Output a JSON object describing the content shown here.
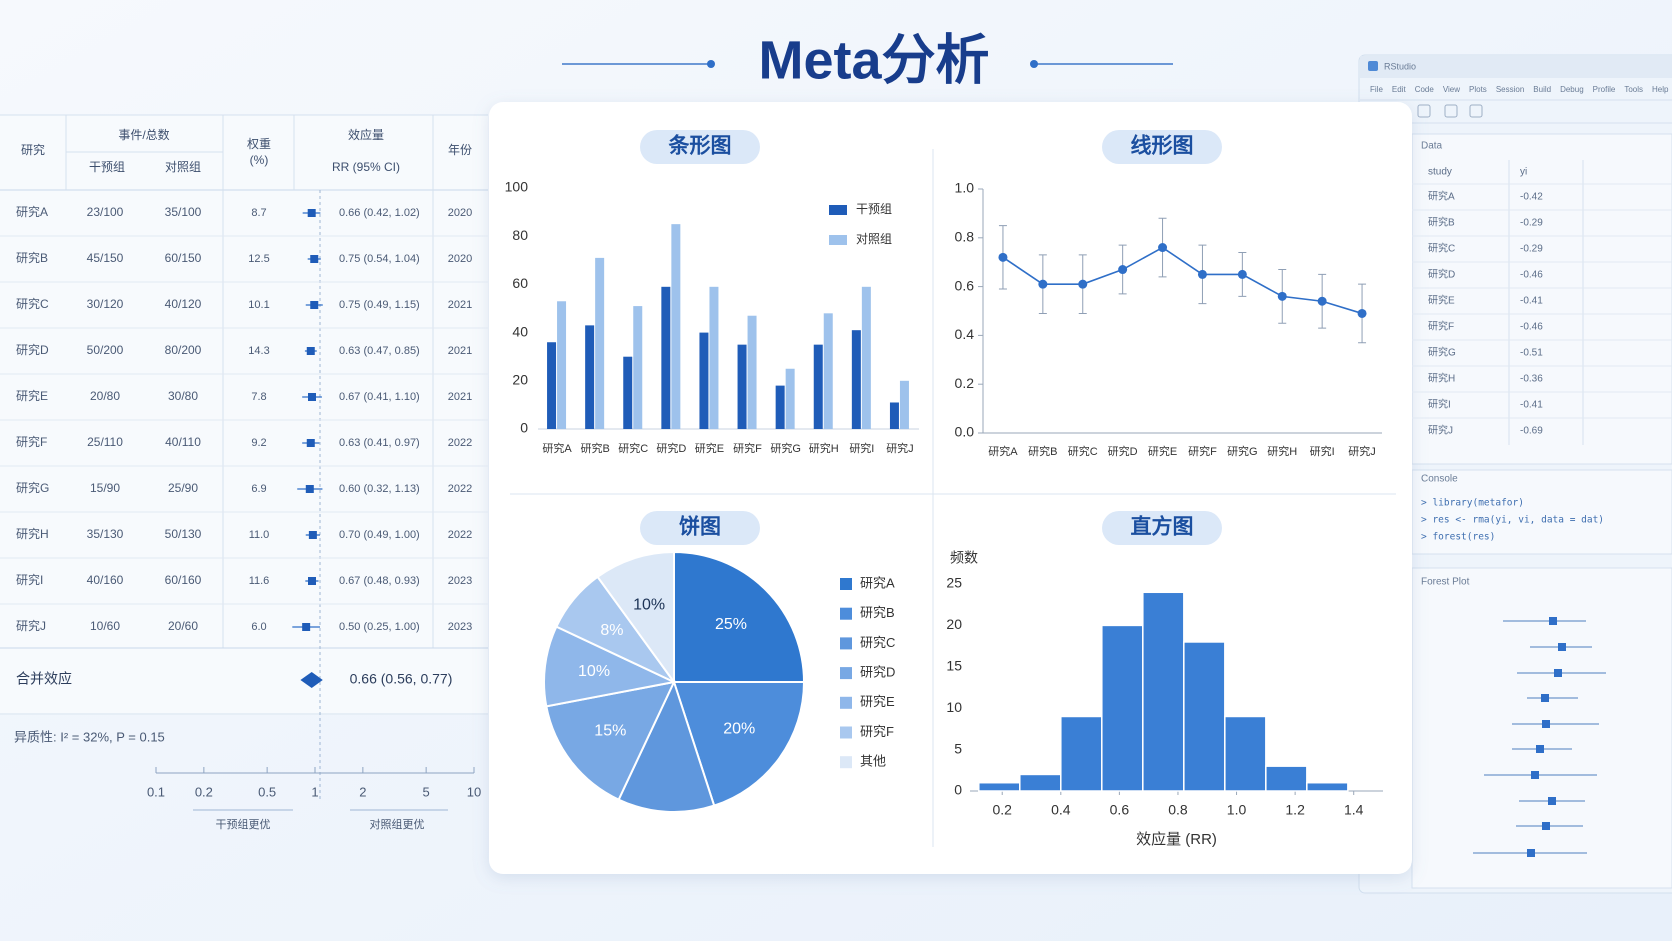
{
  "title": "Meta分析",
  "forest_table": {
    "headers": {
      "study": "研究",
      "events": "事件/总数",
      "intervention": "干预组",
      "control": "对照组",
      "weight": [
        "权重",
        "(%)"
      ],
      "effect": "效应量",
      "effect_sub": "RR (95% CI)",
      "year": "年份"
    },
    "rows": [
      {
        "study": "研究A",
        "intervention": "23/100",
        "control": "35/100",
        "weight": "8.7",
        "rr": 0.66,
        "ci": [
          0.42,
          1.02
        ],
        "rr_label": "0.66 (0.42, 1.02)",
        "year": 2020
      },
      {
        "study": "研究B",
        "intervention": "45/150",
        "control": "60/150",
        "weight": "12.5",
        "rr": 0.75,
        "ci": [
          0.54,
          1.04
        ],
        "rr_label": "0.75 (0.54, 1.04)",
        "year": 2020
      },
      {
        "study": "研究C",
        "intervention": "30/120",
        "control": "40/120",
        "weight": "10.1",
        "rr": 0.75,
        "ci": [
          0.49,
          1.15
        ],
        "rr_label": "0.75 (0.49, 1.15)",
        "year": 2021
      },
      {
        "study": "研究D",
        "intervention": "50/200",
        "control": "80/200",
        "weight": "14.3",
        "rr": 0.63,
        "ci": [
          0.47,
          0.85
        ],
        "rr_label": "0.63 (0.47, 0.85)",
        "year": 2021
      },
      {
        "study": "研究E",
        "intervention": "20/80",
        "control": "30/80",
        "weight": "7.8",
        "rr": 0.67,
        "ci": [
          0.41,
          1.1
        ],
        "rr_label": "0.67 (0.41, 1.10)",
        "year": 2021
      },
      {
        "study": "研究F",
        "intervention": "25/110",
        "control": "40/110",
        "weight": "9.2",
        "rr": 0.63,
        "ci": [
          0.41,
          0.97
        ],
        "rr_label": "0.63 (0.41, 0.97)",
        "year": 2022
      },
      {
        "study": "研究G",
        "intervention": "15/90",
        "control": "25/90",
        "weight": "6.9",
        "rr": 0.6,
        "ci": [
          0.32,
          1.13
        ],
        "rr_label": "0.60 (0.32, 1.13)",
        "year": 2022
      },
      {
        "study": "研究H",
        "intervention": "35/130",
        "control": "50/130",
        "weight": "11.0",
        "rr": 0.7,
        "ci": [
          0.49,
          1.0
        ],
        "rr_label": "0.70 (0.49, 1.00)",
        "year": 2022
      },
      {
        "study": "研究I",
        "intervention": "40/160",
        "control": "60/160",
        "weight": "11.6",
        "rr": 0.67,
        "ci": [
          0.48,
          0.93
        ],
        "rr_label": "0.67 (0.48, 0.93)",
        "year": 2023
      },
      {
        "study": "研究J",
        "intervention": "10/60",
        "control": "20/60",
        "weight": "6.0",
        "rr": 0.5,
        "ci": [
          0.25,
          1.0
        ],
        "rr_label": "0.50 (0.25, 1.00)",
        "year": 2023
      }
    ],
    "pooled": {
      "label": "合并效应",
      "rr": 0.66,
      "ci": [
        0.56,
        0.77
      ],
      "rr_label": "0.66 (0.56, 0.77)"
    },
    "heterogeneity": "异质性: I² = 32%, P = 0.15",
    "axis": {
      "log": true,
      "xlim": [
        0.1,
        10
      ],
      "xticks": [
        0.1,
        0.2,
        0.5,
        1,
        2,
        5,
        10
      ],
      "left_label": "干预组更优",
      "right_label": "对照组更优"
    }
  },
  "chart_data": [
    {
      "type": "bar",
      "title": "条形图",
      "categories": [
        "研究A",
        "研究B",
        "研究C",
        "研究D",
        "研究E",
        "研究F",
        "研究G",
        "研究H",
        "研究I",
        "研究J"
      ],
      "series": [
        {
          "name": "干预组",
          "color": "#1f5cb8",
          "values": [
            36,
            43,
            30,
            59,
            40,
            35,
            18,
            35,
            41,
            11
          ]
        },
        {
          "name": "对照组",
          "color": "#9ec2ec",
          "values": [
            53,
            71,
            51,
            85,
            59,
            47,
            25,
            48,
            59,
            20
          ]
        }
      ],
      "ylim": [
        0,
        100
      ],
      "yticks": [
        0,
        20,
        40,
        60,
        80,
        100
      ],
      "legend": "upper right"
    },
    {
      "type": "line",
      "title": "线形图",
      "categories": [
        "研究A",
        "研究B",
        "研究C",
        "研究D",
        "研究E",
        "研究F",
        "研究G",
        "研究H",
        "研究I",
        "研究J"
      ],
      "values": [
        0.72,
        0.61,
        0.61,
        0.67,
        0.76,
        0.65,
        0.65,
        0.56,
        0.54,
        0.49
      ],
      "errors": [
        0.13,
        0.12,
        0.12,
        0.1,
        0.12,
        0.12,
        0.09,
        0.11,
        0.11,
        0.12
      ],
      "color": "#2f6fc8",
      "ylim": [
        0,
        1
      ],
      "yticks": [
        {
          "value": 0,
          "label": "0.0"
        },
        0.2,
        0.4,
        0.6,
        0.8,
        {
          "value": 1,
          "label": "1.0"
        }
      ]
    },
    {
      "type": "pie",
      "title": "饼图",
      "categories": [
        "研究A",
        "研究B",
        "研究C",
        "研究D",
        "研究E",
        "研究F",
        "其他"
      ],
      "values": [
        25,
        20,
        12,
        15,
        10,
        8,
        10
      ],
      "value_labels": [
        "25%",
        "20%",
        null,
        "15%",
        "10%",
        "8%",
        "10%"
      ],
      "colors": [
        "#2f78cf",
        "#4d8ddb",
        "#5f97dd",
        "#78a8e4",
        "#8fb7ea",
        "#a9c8ef",
        "#dce8f7"
      ],
      "legend": "right"
    },
    {
      "type": "histogram",
      "title": "直方图",
      "xlabel": "效应量 (RR)",
      "ylabel": "频数",
      "bins": [
        0.12,
        0.26,
        0.4,
        0.54,
        0.68,
        0.82,
        0.96,
        1.1,
        1.24,
        1.38
      ],
      "values": [
        1,
        2,
        9,
        20,
        24,
        18,
        9,
        3,
        1
      ],
      "color": "#3a7fd5",
      "xlim": [
        0.09,
        1.5
      ],
      "xticks": [
        0.2,
        0.4,
        0.6,
        0.8,
        {
          "value": 1,
          "label": "1.0"
        },
        1.2,
        1.4
      ],
      "ylim": [
        0,
        25
      ],
      "yticks": [
        0,
        5,
        10,
        15,
        20,
        25
      ]
    }
  ],
  "rstudio": {
    "app": "RStudio",
    "menu": [
      "File",
      "Edit",
      "Code",
      "View",
      "Plots",
      "Session",
      "Build",
      "Debug",
      "Profile",
      "Tools",
      "Help"
    ],
    "data_label": "Data",
    "columns": [
      "study",
      "yi"
    ],
    "rows": [
      [
        "研究A",
        -0.42
      ],
      [
        "研究B",
        -0.29
      ],
      [
        "研究C",
        -0.29
      ],
      [
        "研究D",
        -0.46
      ],
      [
        "研究E",
        -0.41
      ],
      [
        "研究F",
        -0.46
      ],
      [
        "研究G",
        -0.51
      ],
      [
        "研究H",
        -0.36
      ],
      [
        "研究I",
        -0.41
      ],
      [
        "研究J",
        -0.69
      ]
    ],
    "console_label": "Console",
    "console": [
      "> library(metafor)",
      "> res <- rma(yi, vi, data = dat)",
      "> forest(res)"
    ],
    "plot_label": "Forest Plot"
  }
}
